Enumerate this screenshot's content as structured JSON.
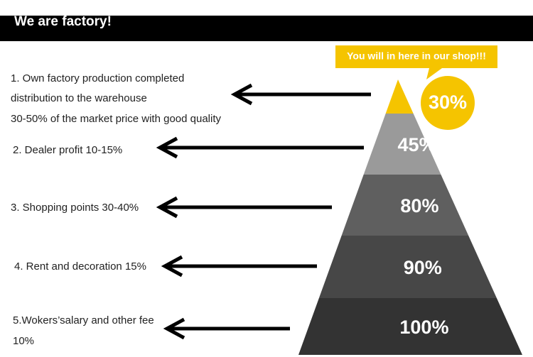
{
  "header": {
    "title": "We are factory!"
  },
  "callout": "You will in here in our shop!!!",
  "levels": [
    {
      "lines": [
        "1. Own factory production completed",
        "distribution to the warehouse",
        "30-50% of the market price with good quality"
      ],
      "percent": "30%"
    },
    {
      "lines": [
        "2. Dealer profit 10-15%"
      ],
      "percent": "45%"
    },
    {
      "lines": [
        "3. Shopping points 30-40%"
      ],
      "percent": "80%"
    },
    {
      "lines": [
        "4. Rent and decoration 15%"
      ],
      "percent": "90%"
    },
    {
      "lines": [
        "5.Wokers’salary and other fee",
        "10%"
      ],
      "percent": "100%"
    }
  ]
}
